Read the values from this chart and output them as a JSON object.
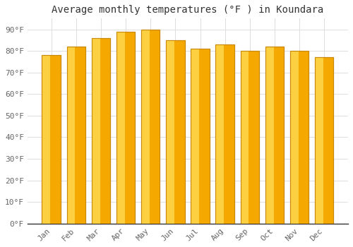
{
  "months": [
    "Jan",
    "Feb",
    "Mar",
    "Apr",
    "May",
    "Jun",
    "Jul",
    "Aug",
    "Sep",
    "Oct",
    "Nov",
    "Dec"
  ],
  "values": [
    78,
    82,
    86,
    89,
    90,
    85,
    81,
    83,
    80,
    82,
    80,
    77
  ],
  "bar_color_left": "#FFD84D",
  "bar_color_right": "#F5A800",
  "bar_edge_color": "#C8890A",
  "title": "Average monthly temperatures (°F ) in Koundara",
  "ylim": [
    0,
    95
  ],
  "yticks": [
    0,
    10,
    20,
    30,
    40,
    50,
    60,
    70,
    80,
    90
  ],
  "ytick_labels": [
    "0°F",
    "10°F",
    "20°F",
    "30°F",
    "40°F",
    "50°F",
    "60°F",
    "70°F",
    "80°F",
    "90°F"
  ],
  "background_color": "#FFFFFF",
  "plot_bg_color": "#FFFFFF",
  "title_fontsize": 10,
  "tick_fontsize": 8,
  "grid_color": "#DDDDDD",
  "tick_color": "#666666",
  "spine_color": "#333333"
}
